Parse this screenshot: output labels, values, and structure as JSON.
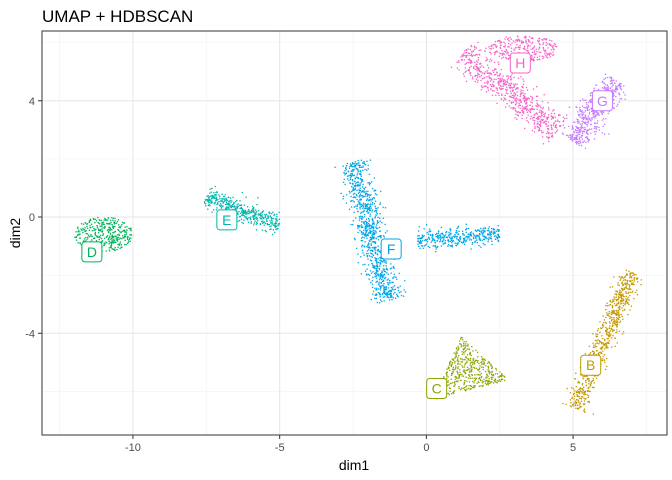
{
  "chart_data": {
    "type": "scatter",
    "title": "UMAP + HDBSCAN",
    "xlabel": "dim1",
    "ylabel": "dim2",
    "xlim": [
      -13.1,
      8.2
    ],
    "ylim": [
      -7.5,
      6.4
    ],
    "x_ticks": [
      -10,
      -5,
      0,
      5
    ],
    "y_ticks": [
      -4,
      0,
      4
    ],
    "grid": true,
    "legend": "none",
    "clusters": [
      {
        "label": "B",
        "color": "#C49A00",
        "label_x": 5.6,
        "label_y": -5.1
      },
      {
        "label": "C",
        "color": "#8AA600",
        "label_x": 0.35,
        "label_y": -5.9
      },
      {
        "label": "D",
        "color": "#00B45A",
        "label_x": -11.4,
        "label_y": -1.2
      },
      {
        "label": "E",
        "color": "#00B6AE",
        "label_x": -6.8,
        "label_y": -0.1
      },
      {
        "label": "F",
        "color": "#00A5E8",
        "label_x": -1.2,
        "label_y": -1.1
      },
      {
        "label": "G",
        "color": "#C77CFF",
        "label_x": 6.0,
        "label_y": 4.0
      },
      {
        "label": "H",
        "color": "#F564C9",
        "label_x": 3.2,
        "label_y": 5.3
      }
    ]
  }
}
